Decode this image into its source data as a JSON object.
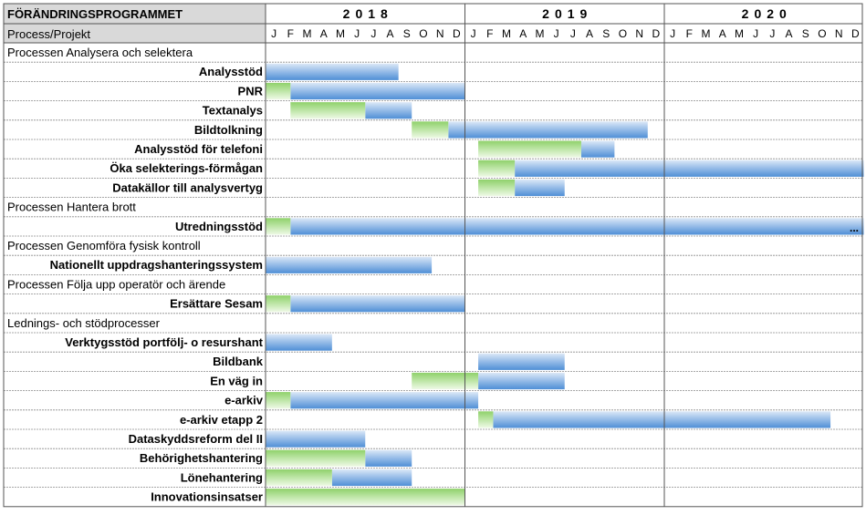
{
  "header": {
    "title": "FÖRÄNDRINGSPROGRAMMET",
    "subheader": "Process/Projekt"
  },
  "colors": {
    "header_fill": "#d9d9d9",
    "blue": "#4f8fd6",
    "blue_light": "#dbe8f7",
    "green": "#8fd16b",
    "green_light": "#e6f5db",
    "grid": "#7f7f7f"
  },
  "chart_data": {
    "type": "gantt",
    "years": [
      "2018",
      "2019",
      "2020"
    ],
    "months": [
      "J",
      "F",
      "M",
      "A",
      "M",
      "J",
      "J",
      "A",
      "S",
      "O",
      "N",
      "D"
    ],
    "x_unit": "month index from Jan 2018 (0 = Jan 2018)",
    "rows": [
      {
        "kind": "group",
        "label": "Processen Analysera och selektera"
      },
      {
        "kind": "task",
        "label": "Analysstöd",
        "green": null,
        "blue": [
          0,
          8
        ]
      },
      {
        "kind": "task",
        "label": "PNR",
        "green": [
          0,
          1.5
        ],
        "blue": [
          1.5,
          12
        ]
      },
      {
        "kind": "task",
        "label": "Textanalys",
        "green": [
          1.5,
          6
        ],
        "blue": [
          6,
          8.8
        ]
      },
      {
        "kind": "task",
        "label": "Bildtolkning",
        "green": [
          8.8,
          11
        ],
        "blue": [
          11,
          23
        ]
      },
      {
        "kind": "task",
        "label": "Analysstöd för telefoni",
        "green": [
          12.8,
          19
        ],
        "blue": [
          19,
          21
        ]
      },
      {
        "kind": "task",
        "label": "Öka selekterings-förmågan",
        "green": [
          12.8,
          15
        ],
        "blue": [
          15,
          36
        ]
      },
      {
        "kind": "task",
        "label": "Datakällor till analysvertyg",
        "green": [
          12.8,
          15
        ],
        "blue": [
          15,
          18
        ]
      },
      {
        "kind": "group",
        "label": "Processen Hantera brott"
      },
      {
        "kind": "task",
        "label": "Utredningsstöd",
        "green": [
          0,
          1.5
        ],
        "blue": [
          1.5,
          36
        ],
        "more": "..."
      },
      {
        "kind": "group",
        "label": "Processen Genomföra fysisk kontroll"
      },
      {
        "kind": "task",
        "label": "Nationellt uppdragshanteringssystem",
        "green": null,
        "blue": [
          0,
          10
        ]
      },
      {
        "kind": "group",
        "label": "Processen Följa upp operatör och ärende"
      },
      {
        "kind": "task",
        "label": "Ersättare Sesam",
        "green": [
          0,
          1.5
        ],
        "blue": [
          1.5,
          12
        ]
      },
      {
        "kind": "group",
        "label": "Lednings- och stödprocesser"
      },
      {
        "kind": "task",
        "label": "Verktygsstöd portfölj- o resurshant",
        "green": null,
        "blue": [
          0,
          4
        ]
      },
      {
        "kind": "task",
        "label": "Bildbank",
        "green": null,
        "blue": [
          12.8,
          18
        ]
      },
      {
        "kind": "task",
        "label": "En väg in",
        "green": [
          8.8,
          12.8
        ],
        "blue": [
          12.8,
          18
        ]
      },
      {
        "kind": "task",
        "label": "e-arkiv",
        "green": [
          0,
          1.5
        ],
        "blue": [
          1.5,
          12.8
        ]
      },
      {
        "kind": "task",
        "label": "e-arkiv etapp 2",
        "green": [
          12.8,
          13.7
        ],
        "blue": [
          13.7,
          34
        ]
      },
      {
        "kind": "task",
        "label": "Dataskyddsreform del II",
        "green": null,
        "blue": [
          0,
          6
        ]
      },
      {
        "kind": "task",
        "label": "Behörighetshantering",
        "green": [
          0,
          6
        ],
        "blue": [
          6,
          8.8
        ]
      },
      {
        "kind": "task",
        "label": "Lönehantering",
        "green": [
          0,
          4
        ],
        "blue": [
          4,
          8.8
        ]
      },
      {
        "kind": "task",
        "label": "Innovationsinsatser",
        "green": [
          0,
          12
        ],
        "blue": null
      }
    ]
  }
}
